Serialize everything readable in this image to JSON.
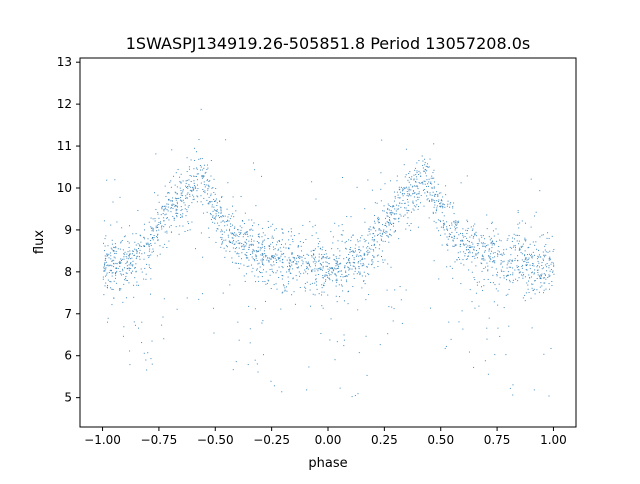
{
  "chart_data": {
    "type": "scatter",
    "title": "1SWASPJ134919.26-505851.8 Period 13057208.0s",
    "xlabel": "phase",
    "ylabel": "flux",
    "xlim": [
      -1.1,
      1.1
    ],
    "ylim": [
      4.3,
      13.1
    ],
    "xticks": [
      -1.0,
      -0.75,
      -0.5,
      -0.25,
      0.0,
      0.25,
      0.5,
      0.75,
      1.0
    ],
    "xtick_labels": [
      "−1.00",
      "−0.75",
      "−0.50",
      "−0.25",
      "0.00",
      "0.25",
      "0.50",
      "0.75",
      "1.00"
    ],
    "yticks": [
      5,
      6,
      7,
      8,
      9,
      10,
      11,
      12,
      13
    ],
    "ytick_labels": [
      "5",
      "6",
      "7",
      "8",
      "9",
      "10",
      "11",
      "12",
      "13"
    ],
    "grid": false,
    "series": [
      {
        "color": "#1f77b4",
        "profile_phase": [
          0.0,
          0.05,
          0.1,
          0.15,
          0.2,
          0.25,
          0.3,
          0.35,
          0.4,
          0.43,
          0.45,
          0.5,
          0.55,
          0.6,
          0.65,
          0.7,
          0.75,
          0.8,
          0.85,
          0.9,
          0.95,
          1.0
        ],
        "profile_flux": [
          8.1,
          8.15,
          8.2,
          8.3,
          8.6,
          9.1,
          9.6,
          9.8,
          10.0,
          10.3,
          10.1,
          9.4,
          9.0,
          8.7,
          8.5,
          8.4,
          8.3,
          8.2,
          8.3,
          8.2,
          8.15,
          8.1
        ]
      }
    ]
  }
}
